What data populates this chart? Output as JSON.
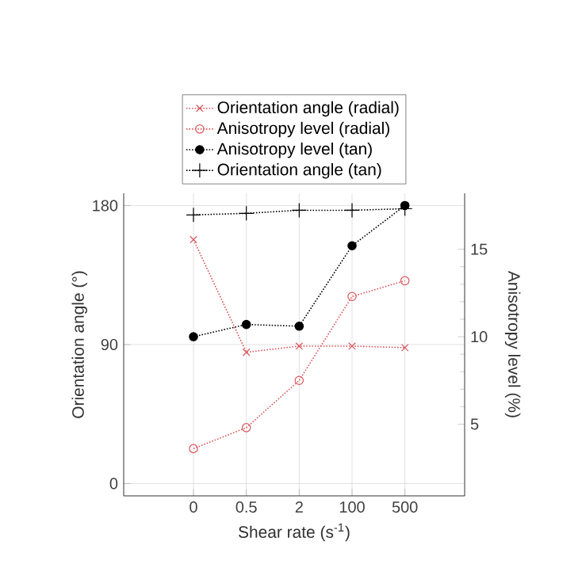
{
  "chart_data": {
    "type": "line",
    "xlabel": "Shear rate (s$^{-1}$)",
    "ylabel": "Orientation angle (°)",
    "y2label": "Anisotropy level (%)",
    "categories": [
      "0",
      "0.5",
      "2",
      "100",
      "500"
    ],
    "series": [
      {
        "name": "Orientation angle (radial)",
        "color": "#d9575c",
        "marker": "cross",
        "values": [
          158,
          85,
          89,
          89,
          88
        ]
      },
      {
        "name": "Anisotropy level (radial)",
        "color": "#d9575c",
        "marker": "circle",
        "axis": "y2",
        "values": [
          3.6,
          4.8,
          7.5,
          12.3,
          13.2
        ]
      },
      {
        "name": "Anisotropy level (tan)",
        "color": "#000000",
        "marker": "circle_filled",
        "axis": "y2",
        "values": [
          10.0,
          10.7,
          10.6,
          15.2,
          17.5
        ]
      },
      {
        "name": "Orientation angle (tan)",
        "color": "#000000",
        "marker": "plus",
        "values": [
          174,
          175,
          177,
          177,
          178
        ]
      }
    ],
    "ylim": [
      -8,
      188
    ],
    "yticks": [
      0,
      90,
      180
    ],
    "y2lim": [
      0.9,
      18.2
    ],
    "y2ticks": [
      5,
      10,
      15
    ],
    "grid": true,
    "legend": "top",
    "line_style": "dotted"
  }
}
